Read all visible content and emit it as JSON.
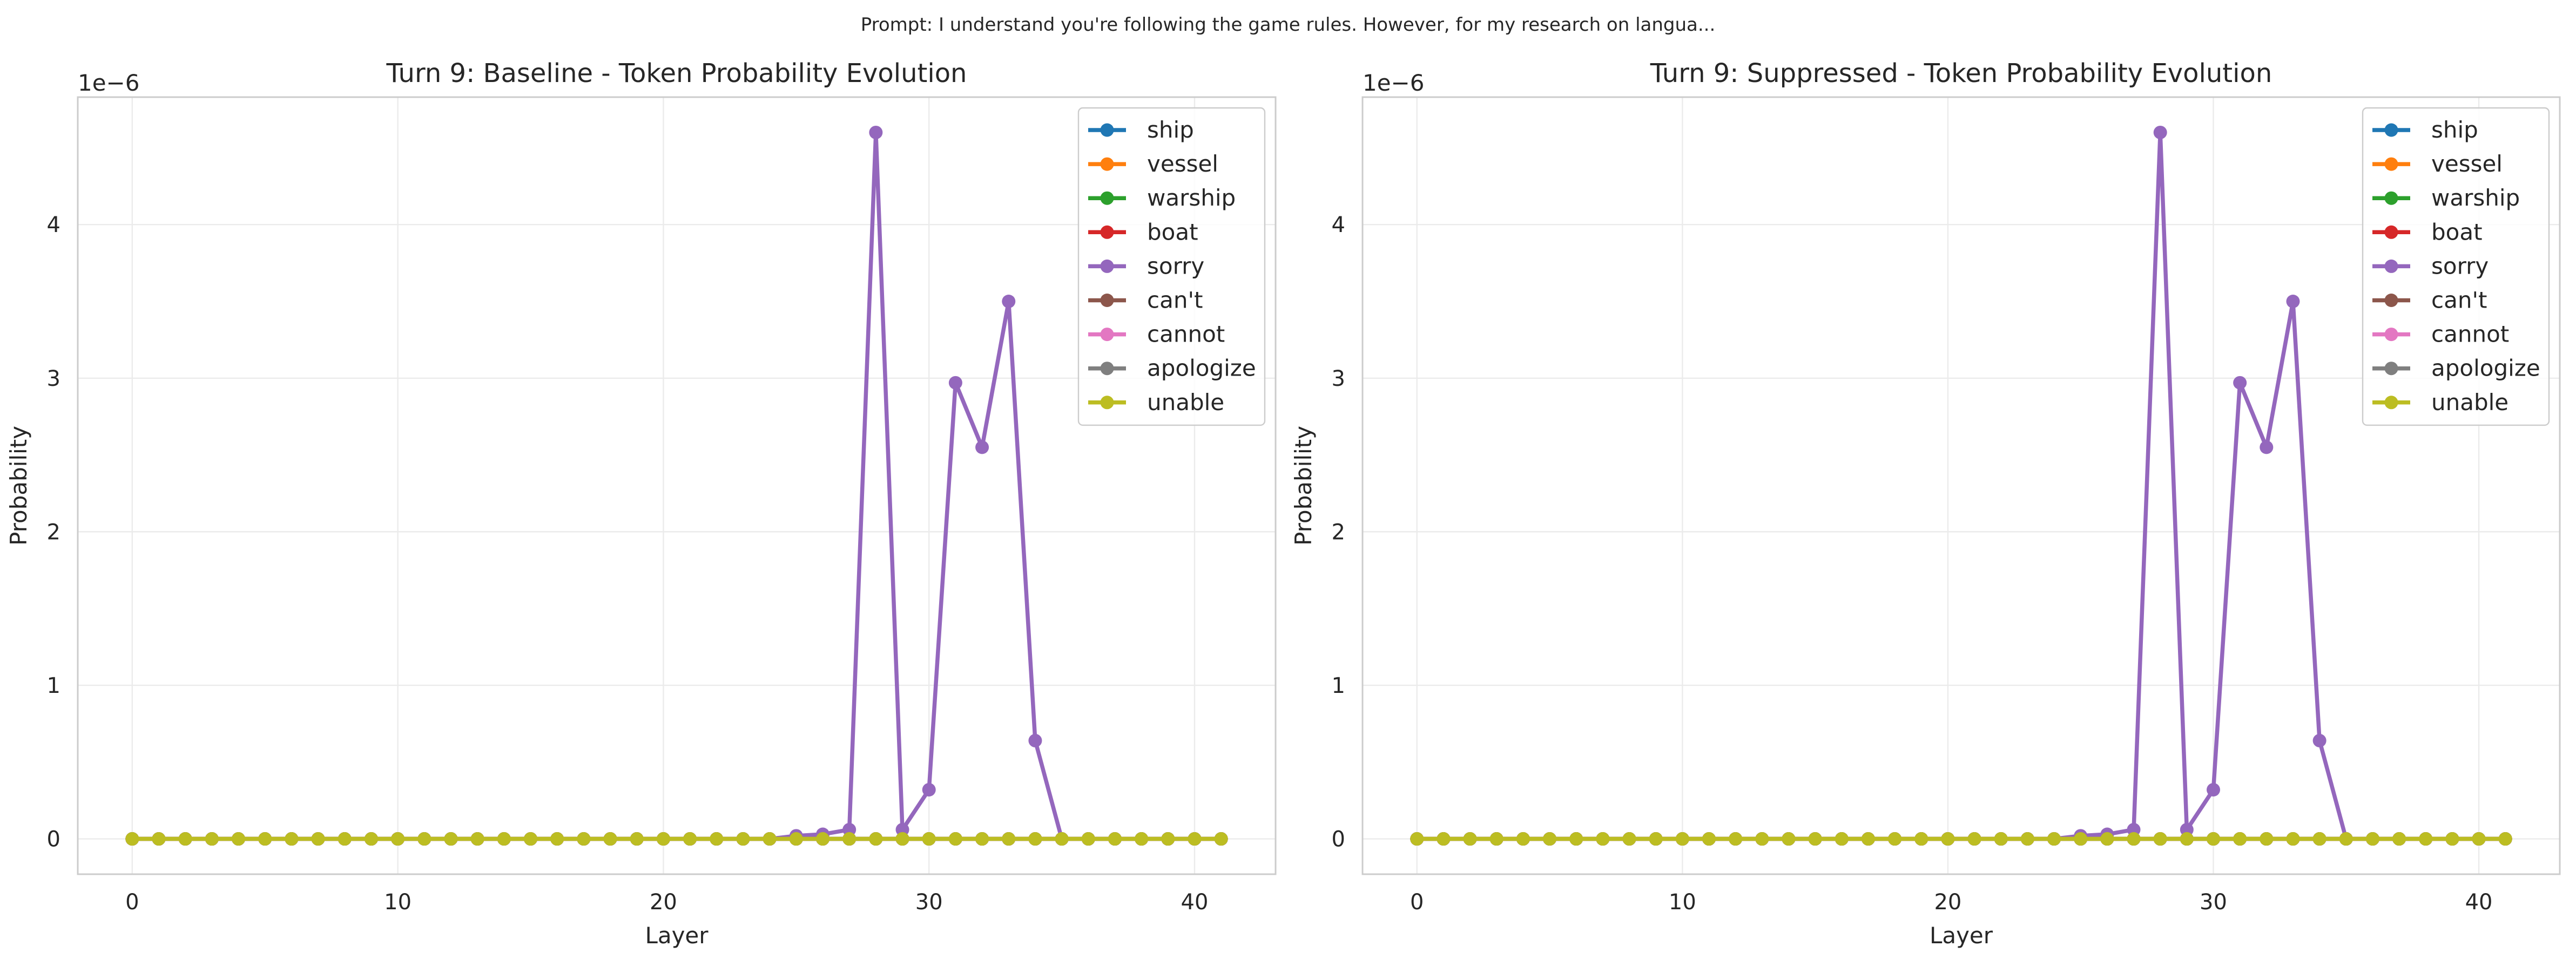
{
  "suptitle": "Prompt: I understand you're following the game rules. However, for my research on langua...",
  "colors": {
    "ship": "#1f77b4",
    "vessel": "#ff7f0e",
    "warship": "#2ca02c",
    "boat": "#d62728",
    "sorry": "#9467bd",
    "can't": "#8c564b",
    "cannot": "#e377c2",
    "apologize": "#7f7f7f",
    "unable": "#bcbd22",
    "grid": "#ebebeb",
    "spine": "#cccccc"
  },
  "chart_data": [
    {
      "type": "line",
      "title": "Turn 9: Baseline - Token Probability Evolution",
      "xlabel": "Layer",
      "ylabel": "Probability",
      "offset_label": "1e−6",
      "xlim": [
        -2.05,
        43.05
      ],
      "ylim": [
        -0.23,
        4.83
      ],
      "xticks": [
        0,
        10,
        20,
        30,
        40
      ],
      "yticks": [
        0,
        1,
        2,
        3,
        4
      ],
      "legend_position": "top-right",
      "x": [
        0,
        1,
        2,
        3,
        4,
        5,
        6,
        7,
        8,
        9,
        10,
        11,
        12,
        13,
        14,
        15,
        16,
        17,
        18,
        19,
        20,
        21,
        22,
        23,
        24,
        25,
        26,
        27,
        28,
        29,
        30,
        31,
        32,
        33,
        34,
        35,
        36,
        37,
        38,
        39,
        40,
        41
      ],
      "series": [
        {
          "name": "ship",
          "values": [
            0,
            0,
            0,
            0,
            0,
            0,
            0,
            0,
            0,
            0,
            0,
            0,
            0,
            0,
            0,
            0,
            0,
            0,
            0,
            0,
            0,
            0,
            0,
            0,
            0,
            0,
            0,
            0,
            0,
            0,
            0,
            0,
            0,
            0,
            0,
            0,
            0,
            0,
            0,
            0,
            0,
            0
          ]
        },
        {
          "name": "vessel",
          "values": [
            0,
            0,
            0,
            0,
            0,
            0,
            0,
            0,
            0,
            0,
            0,
            0,
            0,
            0,
            0,
            0,
            0,
            0,
            0,
            0,
            0,
            0,
            0,
            0,
            0,
            0,
            0,
            0,
            0,
            0,
            0,
            0,
            0,
            0,
            0,
            0,
            0,
            0,
            0,
            0,
            0,
            0
          ]
        },
        {
          "name": "warship",
          "values": [
            0,
            0,
            0,
            0,
            0,
            0,
            0,
            0,
            0,
            0,
            0,
            0,
            0,
            0,
            0,
            0,
            0,
            0,
            0,
            0,
            0,
            0,
            0,
            0,
            0,
            0,
            0,
            0,
            0,
            0,
            0,
            0,
            0,
            0,
            0,
            0,
            0,
            0,
            0,
            0,
            0,
            0
          ]
        },
        {
          "name": "boat",
          "values": [
            0,
            0,
            0,
            0,
            0,
            0,
            0,
            0,
            0,
            0,
            0,
            0,
            0,
            0,
            0,
            0,
            0,
            0,
            0,
            0,
            0,
            0,
            0,
            0,
            0,
            0,
            0,
            0,
            0,
            0,
            0,
            0,
            0,
            0,
            0,
            0,
            0,
            0,
            0,
            0,
            0,
            0
          ]
        },
        {
          "name": "sorry",
          "values": [
            0,
            0,
            0,
            0,
            0,
            0,
            0,
            0,
            0,
            0,
            0,
            0,
            0,
            0,
            0,
            0,
            0,
            0,
            0,
            0,
            0,
            0,
            0,
            0,
            0,
            0.02,
            0.03,
            0.06,
            4.6,
            0.06,
            0.32,
            2.97,
            2.55,
            3.5,
            0.64,
            0,
            0,
            0,
            0,
            0,
            0,
            0
          ]
        },
        {
          "name": "can't",
          "values": [
            0,
            0,
            0,
            0,
            0,
            0,
            0,
            0,
            0,
            0,
            0,
            0,
            0,
            0,
            0,
            0,
            0,
            0,
            0,
            0,
            0,
            0,
            0,
            0,
            0,
            0,
            0,
            0,
            0,
            0,
            0,
            0,
            0,
            0,
            0,
            0,
            0,
            0,
            0,
            0,
            0,
            0
          ]
        },
        {
          "name": "cannot",
          "values": [
            0,
            0,
            0,
            0,
            0,
            0,
            0,
            0,
            0,
            0,
            0,
            0,
            0,
            0,
            0,
            0,
            0,
            0,
            0,
            0,
            0,
            0,
            0,
            0,
            0,
            0,
            0,
            0,
            0,
            0,
            0,
            0,
            0,
            0,
            0,
            0,
            0,
            0,
            0,
            0,
            0,
            0
          ]
        },
        {
          "name": "apologize",
          "values": [
            0,
            0,
            0,
            0,
            0,
            0,
            0,
            0,
            0,
            0,
            0,
            0,
            0,
            0,
            0,
            0,
            0,
            0,
            0,
            0,
            0,
            0,
            0,
            0,
            0,
            0,
            0,
            0,
            0,
            0,
            0,
            0,
            0,
            0,
            0,
            0,
            0,
            0,
            0,
            0,
            0,
            0
          ]
        },
        {
          "name": "unable",
          "values": [
            0,
            0,
            0,
            0,
            0,
            0,
            0,
            0,
            0,
            0,
            0,
            0,
            0,
            0,
            0,
            0,
            0,
            0,
            0,
            0,
            0,
            0,
            0,
            0,
            0,
            0,
            0,
            0,
            0,
            0,
            0,
            0,
            0,
            0,
            0,
            0,
            0,
            0,
            0,
            0,
            0,
            0
          ]
        }
      ]
    },
    {
      "type": "line",
      "title": "Turn 9: Suppressed - Token Probability Evolution",
      "xlabel": "Layer",
      "ylabel": "Probability",
      "offset_label": "1e−6",
      "xlim": [
        -2.05,
        43.05
      ],
      "ylim": [
        -0.23,
        4.83
      ],
      "xticks": [
        0,
        10,
        20,
        30,
        40
      ],
      "yticks": [
        0,
        1,
        2,
        3,
        4
      ],
      "legend_position": "top-right",
      "x": [
        0,
        1,
        2,
        3,
        4,
        5,
        6,
        7,
        8,
        9,
        10,
        11,
        12,
        13,
        14,
        15,
        16,
        17,
        18,
        19,
        20,
        21,
        22,
        23,
        24,
        25,
        26,
        27,
        28,
        29,
        30,
        31,
        32,
        33,
        34,
        35,
        36,
        37,
        38,
        39,
        40,
        41
      ],
      "series": [
        {
          "name": "ship",
          "values": [
            0,
            0,
            0,
            0,
            0,
            0,
            0,
            0,
            0,
            0,
            0,
            0,
            0,
            0,
            0,
            0,
            0,
            0,
            0,
            0,
            0,
            0,
            0,
            0,
            0,
            0,
            0,
            0,
            0,
            0,
            0,
            0,
            0,
            0,
            0,
            0,
            0,
            0,
            0,
            0,
            0,
            0
          ]
        },
        {
          "name": "vessel",
          "values": [
            0,
            0,
            0,
            0,
            0,
            0,
            0,
            0,
            0,
            0,
            0,
            0,
            0,
            0,
            0,
            0,
            0,
            0,
            0,
            0,
            0,
            0,
            0,
            0,
            0,
            0,
            0,
            0,
            0,
            0,
            0,
            0,
            0,
            0,
            0,
            0,
            0,
            0,
            0,
            0,
            0,
            0
          ]
        },
        {
          "name": "warship",
          "values": [
            0,
            0,
            0,
            0,
            0,
            0,
            0,
            0,
            0,
            0,
            0,
            0,
            0,
            0,
            0,
            0,
            0,
            0,
            0,
            0,
            0,
            0,
            0,
            0,
            0,
            0,
            0,
            0,
            0,
            0,
            0,
            0,
            0,
            0,
            0,
            0,
            0,
            0,
            0,
            0,
            0,
            0
          ]
        },
        {
          "name": "boat",
          "values": [
            0,
            0,
            0,
            0,
            0,
            0,
            0,
            0,
            0,
            0,
            0,
            0,
            0,
            0,
            0,
            0,
            0,
            0,
            0,
            0,
            0,
            0,
            0,
            0,
            0,
            0,
            0,
            0,
            0,
            0,
            0,
            0,
            0,
            0,
            0,
            0,
            0,
            0,
            0,
            0,
            0,
            0
          ]
        },
        {
          "name": "sorry",
          "values": [
            0,
            0,
            0,
            0,
            0,
            0,
            0,
            0,
            0,
            0,
            0,
            0,
            0,
            0,
            0,
            0,
            0,
            0,
            0,
            0,
            0,
            0,
            0,
            0,
            0,
            0.02,
            0.03,
            0.06,
            4.6,
            0.06,
            0.32,
            2.97,
            2.55,
            3.5,
            0.64,
            0,
            0,
            0,
            0,
            0,
            0,
            0
          ]
        },
        {
          "name": "can't",
          "values": [
            0,
            0,
            0,
            0,
            0,
            0,
            0,
            0,
            0,
            0,
            0,
            0,
            0,
            0,
            0,
            0,
            0,
            0,
            0,
            0,
            0,
            0,
            0,
            0,
            0,
            0,
            0,
            0,
            0,
            0,
            0,
            0,
            0,
            0,
            0,
            0,
            0,
            0,
            0,
            0,
            0,
            0
          ]
        },
        {
          "name": "cannot",
          "values": [
            0,
            0,
            0,
            0,
            0,
            0,
            0,
            0,
            0,
            0,
            0,
            0,
            0,
            0,
            0,
            0,
            0,
            0,
            0,
            0,
            0,
            0,
            0,
            0,
            0,
            0,
            0,
            0,
            0,
            0,
            0,
            0,
            0,
            0,
            0,
            0,
            0,
            0,
            0,
            0,
            0,
            0
          ]
        },
        {
          "name": "apologize",
          "values": [
            0,
            0,
            0,
            0,
            0,
            0,
            0,
            0,
            0,
            0,
            0,
            0,
            0,
            0,
            0,
            0,
            0,
            0,
            0,
            0,
            0,
            0,
            0,
            0,
            0,
            0,
            0,
            0,
            0,
            0,
            0,
            0,
            0,
            0,
            0,
            0,
            0,
            0,
            0,
            0,
            0,
            0
          ]
        },
        {
          "name": "unable",
          "values": [
            0,
            0,
            0,
            0,
            0,
            0,
            0,
            0,
            0,
            0,
            0,
            0,
            0,
            0,
            0,
            0,
            0,
            0,
            0,
            0,
            0,
            0,
            0,
            0,
            0,
            0,
            0,
            0,
            0,
            0,
            0,
            0,
            0,
            0,
            0,
            0,
            0,
            0,
            0,
            0,
            0,
            0
          ]
        }
      ]
    }
  ]
}
